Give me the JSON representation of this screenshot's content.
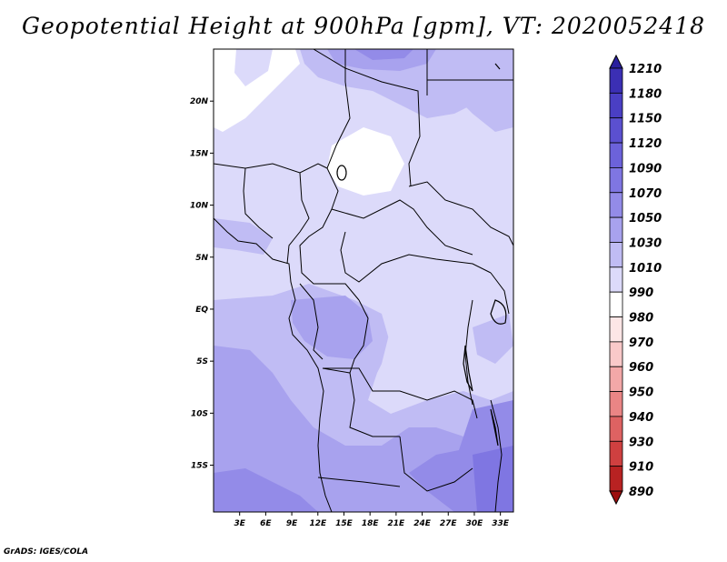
{
  "title": "Geopotential Height at 900hPa [gpm], VT: 2020052418",
  "footer": "GrADS: IGES/COLA",
  "map": {
    "lat_labels": [
      "20N",
      "15N",
      "10N",
      "5N",
      "EQ",
      "5S",
      "10S",
      "15S"
    ],
    "lon_labels": [
      "3E",
      "6E",
      "9E",
      "12E",
      "15E",
      "18E",
      "21E",
      "24E",
      "27E",
      "30E",
      "33E"
    ],
    "lon_range": [
      0,
      34.5
    ],
    "lat_range": [
      -19.5,
      25
    ]
  },
  "colorbar": {
    "levels": [
      "1210",
      "1180",
      "1150",
      "1120",
      "1090",
      "1070",
      "1050",
      "1030",
      "1010",
      "990",
      "980",
      "970",
      "960",
      "950",
      "940",
      "930",
      "910",
      "890"
    ],
    "colors": [
      "#2a1f9e",
      "#3b2fb4",
      "#4a3fc4",
      "#5b50d0",
      "#6c62da",
      "#7f76e2",
      "#938be8",
      "#a8a2ee",
      "#c0bcf4",
      "#dcdafa",
      "#ffffff",
      "#fde6e6",
      "#f9c9c9",
      "#f3a8a8",
      "#ea8585",
      "#de6262",
      "#cf4040",
      "#b82222",
      "#9c0e0e"
    ]
  }
}
